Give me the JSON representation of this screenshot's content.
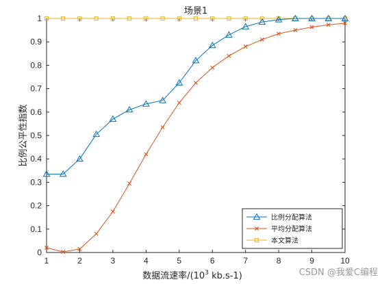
{
  "chart_data": {
    "type": "line",
    "title": "场景1",
    "xlabel_main": "数据流速率/(10",
    "xlabel_sup": "3",
    "xlabel_tail": " kb.s-1)",
    "ylabel": "比例公平性指数",
    "xlim": [
      1,
      10
    ],
    "ylim": [
      0,
      1
    ],
    "xticks": [
      1,
      2,
      3,
      4,
      5,
      6,
      7,
      8,
      9,
      10
    ],
    "yticks": [
      0,
      0.1,
      0.2,
      0.3,
      0.4,
      0.5,
      0.6,
      0.7,
      0.8,
      0.9,
      1
    ],
    "ytick_labels": [
      "0",
      "0.1",
      "0.2",
      "0.3",
      "0.4",
      "0.5",
      "0.6",
      "0.7",
      "0.8",
      "0.9",
      "1"
    ],
    "x": [
      1,
      1.5,
      2,
      2.5,
      3,
      3.5,
      4,
      4.5,
      5,
      5.5,
      6,
      6.5,
      7,
      7.5,
      8,
      8.5,
      9,
      9.5,
      10
    ],
    "grid": false,
    "legend_position": "bottom-right",
    "series": [
      {
        "name": "比例分配算法",
        "color": "#0072BD",
        "marker": "triangle",
        "values": [
          0.335,
          0.335,
          0.4,
          0.505,
          0.57,
          0.61,
          0.635,
          0.65,
          0.725,
          0.82,
          0.885,
          0.93,
          0.965,
          0.985,
          0.995,
          1.0,
          1.0,
          1.0,
          1.0
        ]
      },
      {
        "name": "平均分配算法",
        "color": "#D95319",
        "marker": "x",
        "values": [
          0.02,
          0.003,
          0.015,
          0.08,
          0.175,
          0.295,
          0.42,
          0.535,
          0.64,
          0.725,
          0.79,
          0.84,
          0.88,
          0.91,
          0.935,
          0.95,
          0.963,
          0.973,
          0.98
        ]
      },
      {
        "name": "本文算法",
        "color": "#EDB120",
        "marker": "square",
        "values": [
          1,
          1,
          1,
          1,
          1,
          1,
          1,
          1,
          1,
          1,
          1,
          1,
          1,
          1,
          1,
          1,
          1,
          1,
          1
        ]
      }
    ]
  },
  "watermark": "CSDN @我爱C编程"
}
